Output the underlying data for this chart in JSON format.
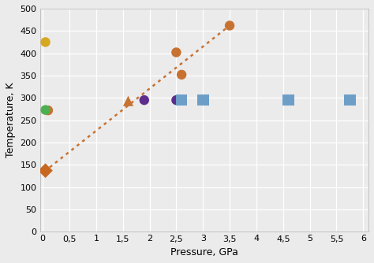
{
  "xlabel": "Pressure, GPa",
  "ylabel": "Temperature, K",
  "xlim": [
    -0.05,
    6.1
  ],
  "ylim": [
    0,
    500
  ],
  "xticks": [
    0,
    0.5,
    1,
    1.5,
    2,
    2.5,
    3,
    3.5,
    4,
    4.5,
    5,
    5.5,
    6
  ],
  "yticks": [
    0,
    50,
    100,
    150,
    200,
    250,
    300,
    350,
    400,
    450,
    500
  ],
  "xtick_labels": [
    "0",
    "0,5",
    "1",
    "1,5",
    "2",
    "2,5",
    "3",
    "3,5",
    "4",
    "4,5",
    "5",
    "5,5",
    "6"
  ],
  "ytick_labels": [
    "0",
    "50",
    "100",
    "150",
    "200",
    "250",
    "300",
    "350",
    "400",
    "450",
    "500"
  ],
  "background_color": "#ebebeb",
  "plot_bg_color": "#ebebeb",
  "grid_color": "#ffffff",
  "orange_circles": {
    "x": [
      0.1,
      2.5,
      2.6,
      3.5
    ],
    "y": [
      272,
      402,
      352,
      462
    ],
    "color": "#c87232",
    "size": 80
  },
  "yellow_circle": {
    "x": [
      0.05
    ],
    "y": [
      425
    ],
    "color": "#d4a820",
    "size": 80
  },
  "green_circle": {
    "x": [
      0.05
    ],
    "y": [
      273
    ],
    "color": "#4caf50",
    "size": 80
  },
  "orange_diamond": {
    "x": [
      0.05
    ],
    "y": [
      137
    ],
    "color": "#c86820",
    "size": 90
  },
  "orange_triangle": {
    "x": [
      1.6
    ],
    "y": [
      293
    ],
    "color": "#c87232",
    "size": 90
  },
  "purple_circles": {
    "x": [
      1.9,
      2.5
    ],
    "y": [
      295,
      295
    ],
    "color": "#5c2d8c",
    "size": 80
  },
  "blue_squares": {
    "x": [
      2.6,
      3.0,
      4.6,
      5.75
    ],
    "y": [
      295,
      295,
      295,
      295
    ],
    "color": "#6d9ec8",
    "size": 110
  },
  "trendline": {
    "x": [
      0.03,
      3.52
    ],
    "y": [
      135,
      464
    ],
    "color": "#c87232",
    "linewidth": 1.8
  },
  "xlabel_fontsize": 9,
  "ylabel_fontsize": 9,
  "tick_fontsize": 8
}
